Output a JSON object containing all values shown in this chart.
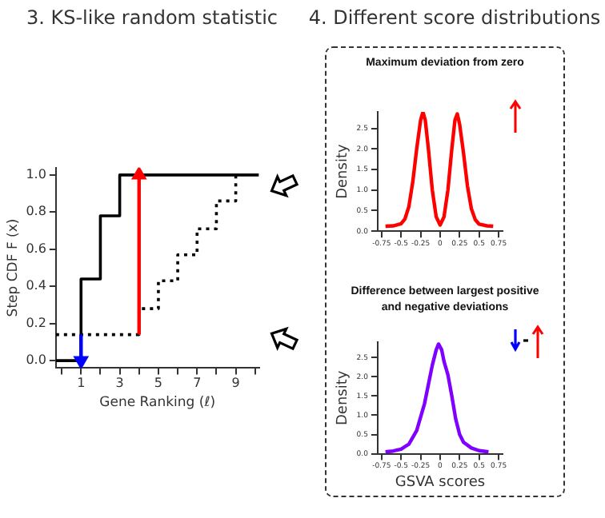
{
  "chart_data": [
    {
      "type": "step",
      "title": "3. KS-like random statistic",
      "xlabel": "Gene Ranking (ℓ)",
      "ylabel": "Step CDF F (x)",
      "xlim": [
        -0.3,
        10.2
      ],
      "ylim": [
        -0.04,
        1.04
      ],
      "xticks": [
        {
          "value": 0,
          "label": null
        },
        1,
        {
          "value": 2,
          "label": null
        },
        3,
        {
          "value": 4,
          "label": null
        },
        5,
        {
          "value": 6,
          "label": null
        },
        7,
        {
          "value": 8,
          "label": null
        },
        9,
        {
          "value": 10,
          "label": null
        }
      ],
      "yticks": [
        {
          "value": 0,
          "label": "0.0"
        },
        0.2,
        0.4,
        0.6,
        0.8,
        {
          "value": 1,
          "label": "1.0"
        }
      ],
      "series": [
        {
          "color": "#000000",
          "line_style": "solid",
          "x": [
            -0.3,
            1,
            2,
            3,
            10.2
          ],
          "values": [
            0,
            0.44,
            0.78,
            1,
            1
          ]
        },
        {
          "color": "#000000",
          "line_style": "dotted",
          "x": [
            -0.3,
            4,
            5,
            6,
            7,
            8,
            9
          ],
          "values": [
            0.14,
            0.28,
            0.43,
            0.57,
            0.71,
            0.86,
            1
          ]
        },
        {
          "color": "#0000ff",
          "marker": "triangle",
          "x": [
            1,
            1
          ],
          "values": [
            0.14,
            0
          ]
        },
        {
          "color": "#ff0000",
          "marker": "triangle",
          "x": [
            4,
            4
          ],
          "values": [
            0.14,
            1
          ]
        }
      ],
      "grid": false,
      "legend": false,
      "marker": "none"
    },
    {
      "type": "line",
      "title": "4. Different score distributions",
      "subtitle": "Maximum deviation from zero",
      "ylabel": "Density",
      "xlim": [
        -0.8,
        0.8
      ],
      "ylim": [
        0,
        2.9
      ],
      "xticks": [
        {
          "value": -0.75,
          "label": "-0.75"
        },
        {
          "value": -0.5,
          "label": "-0.5"
        },
        {
          "value": -0.25,
          "label": "-0.25"
        },
        0,
        0.25,
        0.5,
        0.75
      ],
      "yticks": [
        {
          "value": 0,
          "label": "0.0"
        },
        0.5,
        {
          "value": 1,
          "label": "1.0"
        },
        1.5,
        {
          "value": 2,
          "label": "2.0"
        },
        2.5
      ],
      "series": [
        {
          "color": "#ff0000",
          "x": [
            -0.7,
            -0.6,
            -0.5,
            -0.45,
            -0.4,
            -0.35,
            -0.3,
            -0.25,
            -0.22,
            -0.19,
            -0.15,
            -0.1,
            -0.05,
            0,
            0.05,
            0.1,
            0.15,
            0.19,
            0.22,
            0.25,
            0.3,
            0.35,
            0.4,
            0.45,
            0.5,
            0.6,
            0.68
          ],
          "values": [
            0.12,
            0.13,
            0.18,
            0.3,
            0.6,
            1.2,
            2,
            2.7,
            2.9,
            2.7,
            2,
            1,
            0.35,
            0.15,
            0.35,
            1,
            2,
            2.7,
            2.85,
            2.6,
            1.9,
            1.1,
            0.55,
            0.28,
            0.17,
            0.13,
            0.12
          ]
        }
      ],
      "grid": false,
      "legend": false,
      "marker": "none"
    },
    {
      "type": "line",
      "title": "Difference between largest positive and negative deviations",
      "xlabel": "GSVA scores",
      "ylabel": "Density",
      "xlim": [
        -0.8,
        0.8
      ],
      "ylim": [
        0,
        2.9
      ],
      "xticks": [
        {
          "value": -0.75,
          "label": "-0.75"
        },
        {
          "value": -0.5,
          "label": "-0.5"
        },
        {
          "value": -0.25,
          "label": "-0.25"
        },
        0,
        0.25,
        0.5,
        0.75
      ],
      "yticks": [
        {
          "value": 0,
          "label": "0.0"
        },
        0.5,
        {
          "value": 1,
          "label": "1.0"
        },
        1.5,
        {
          "value": 2,
          "label": "2.0"
        },
        2.5
      ],
      "series": [
        {
          "color": "#7f00ff",
          "x": [
            -0.7,
            -0.6,
            -0.5,
            -0.4,
            -0.3,
            -0.2,
            -0.15,
            -0.1,
            -0.05,
            -0.02,
            0.02,
            0.05,
            0.1,
            0.15,
            0.2,
            0.25,
            0.3,
            0.4,
            0.5,
            0.62
          ],
          "values": [
            0.05,
            0.07,
            0.12,
            0.25,
            0.6,
            1.3,
            1.8,
            2.3,
            2.7,
            2.85,
            2.7,
            2.4,
            2.05,
            1.5,
            0.9,
            0.5,
            0.3,
            0.15,
            0.08,
            0.05
          ]
        }
      ],
      "grid": false,
      "legend": false,
      "marker": "none"
    }
  ]
}
